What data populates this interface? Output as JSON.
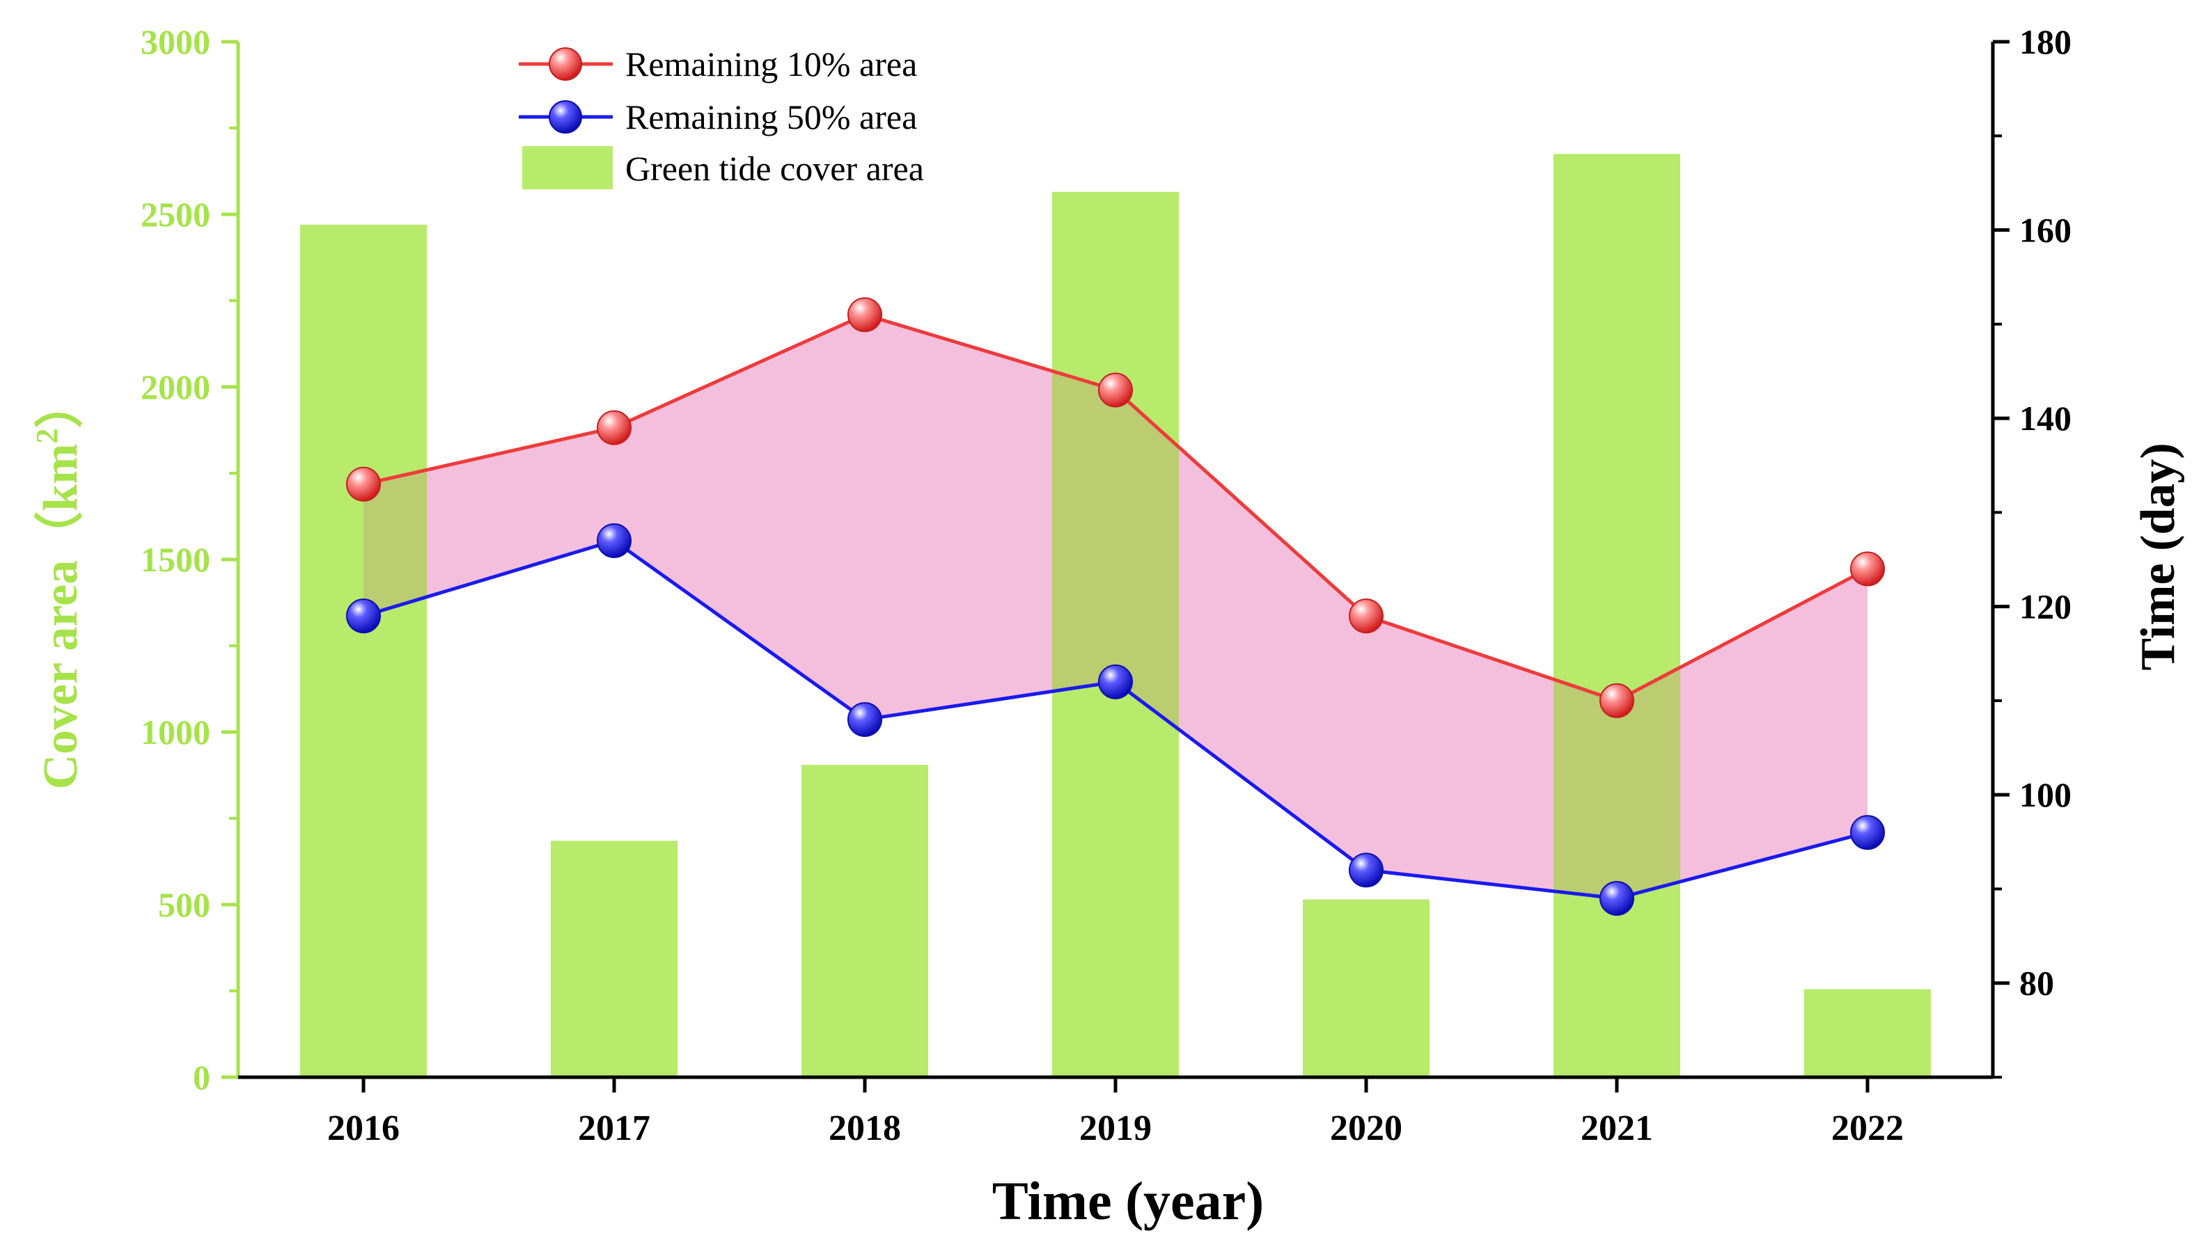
{
  "chart_data": {
    "type": "bar+line",
    "categories": [
      "2016",
      "2017",
      "2018",
      "2019",
      "2020",
      "2021",
      "2022"
    ],
    "bars": {
      "name": "Green tide cover area",
      "axis": "left",
      "color": "#b8ea6c",
      "values": [
        2470,
        685,
        905,
        2565,
        515,
        2675,
        255
      ]
    },
    "series": [
      {
        "name": "Remaining 10% area",
        "axis": "right",
        "color": "#ee3b3b",
        "values": [
          133,
          139,
          151,
          143,
          119,
          110,
          124
        ]
      },
      {
        "name": "Remaining 50% area",
        "axis": "right",
        "color": "#1a1aee",
        "values": [
          119,
          127,
          108,
          112,
          92,
          89,
          96
        ]
      }
    ],
    "fill_between_color": "#fcd9ee",
    "left_axis": {
      "label": "Cover area（km²）",
      "label_main": "Cover area（km",
      "label_sup": "2",
      "label_end": "）",
      "ylim": [
        0,
        3000
      ],
      "ticks": [
        "0",
        "500",
        "1000",
        "1500",
        "2000",
        "2500",
        "3000"
      ],
      "color": "#a6e34a"
    },
    "right_axis": {
      "label": "Time (day)",
      "ylim": [
        70,
        180
      ],
      "ticks": [
        "80",
        "100",
        "120",
        "140",
        "160",
        "180"
      ]
    },
    "x_axis": {
      "label": "Time (year)"
    },
    "legend": {
      "position": "top-left-center",
      "entries": [
        "Remaining 10% area",
        "Remaining 50% area",
        "Green tide cover area"
      ]
    }
  }
}
